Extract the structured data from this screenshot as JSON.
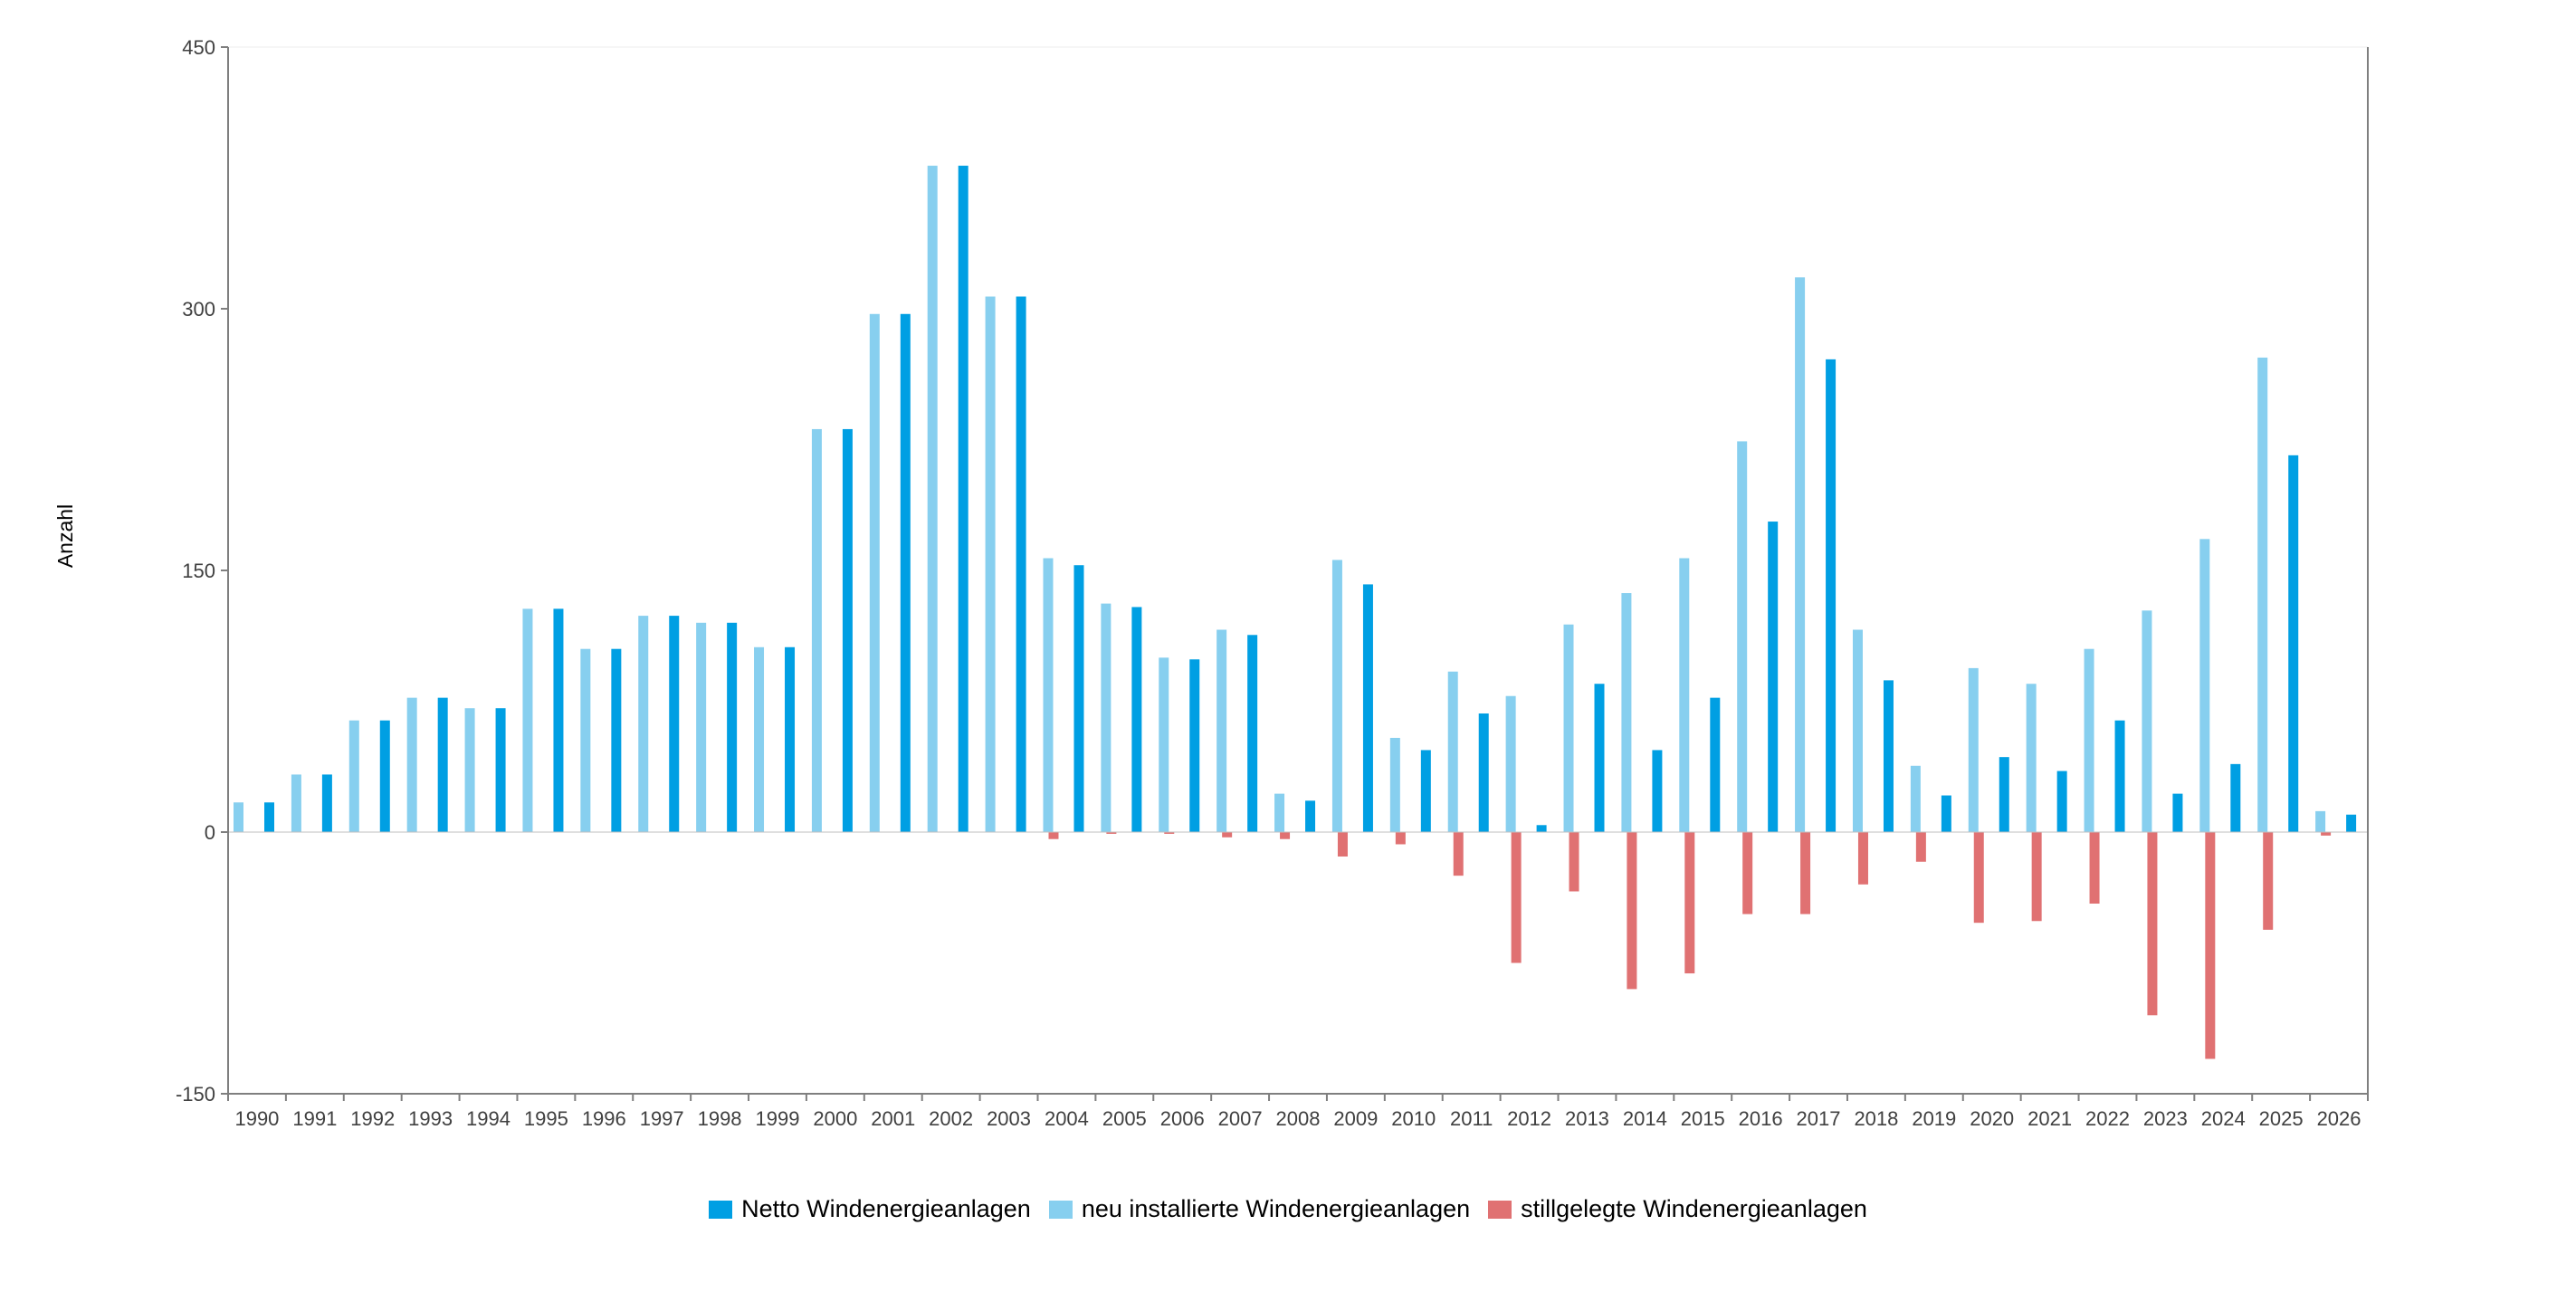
{
  "colors": {
    "netto": "#009fe3",
    "neu": "#87cfef",
    "still": "#e07172",
    "axis": "#7f7f7f",
    "grid": "#ececec"
  },
  "chart_data": {
    "type": "bar",
    "ylabel": "Anzahl",
    "ylim": [
      -150,
      450
    ],
    "yticks": [
      "-150",
      "0",
      "150",
      "300",
      "450"
    ],
    "categories": [
      "1990",
      "1991",
      "1992",
      "1993",
      "1994",
      "1995",
      "1996",
      "1997",
      "1998",
      "1999",
      "2000",
      "2001",
      "2002",
      "2003",
      "2004",
      "2005",
      "2006",
      "2007",
      "2008",
      "2009",
      "2010",
      "2011",
      "2012",
      "2013",
      "2014",
      "2015",
      "2016",
      "2017",
      "2018",
      "2019",
      "2020",
      "2021",
      "2022",
      "2023",
      "2024",
      "2025",
      "2026"
    ],
    "series": [
      {
        "name": "neu installierte Windenergieanlagen",
        "color_key": "neu",
        "values": [
          17,
          33,
          64,
          77,
          71,
          128,
          105,
          124,
          120,
          106,
          231,
          297,
          382,
          307,
          157,
          131,
          100,
          116,
          22,
          156,
          54,
          92,
          78,
          119,
          137,
          157,
          224,
          318,
          116,
          38,
          94,
          85,
          105,
          127,
          168,
          272,
          12
        ]
      },
      {
        "name": "stillgelegte Windenergieanlagen",
        "color_key": "still",
        "values": [
          0,
          0,
          0,
          0,
          0,
          0,
          0,
          0,
          0,
          0,
          0,
          0,
          0,
          0,
          -4,
          -1,
          -1,
          -3,
          -4,
          -14,
          -7,
          -25,
          -75,
          -34,
          -90,
          -81,
          -47,
          -47,
          -30,
          -17,
          -52,
          -51,
          -41,
          -105,
          -130,
          -56,
          -2
        ]
      },
      {
        "name": "Netto Windenergieanlagen",
        "color_key": "netto",
        "values": [
          17,
          33,
          64,
          77,
          71,
          128,
          105,
          124,
          120,
          106,
          231,
          297,
          382,
          307,
          153,
          129,
          99,
          113,
          18,
          142,
          47,
          68,
          4,
          85,
          47,
          77,
          178,
          271,
          87,
          21,
          43,
          35,
          64,
          22,
          39,
          216,
          10
        ]
      }
    ]
  },
  "legend": [
    {
      "label": "Netto Windenergieanlagen",
      "color_key": "netto"
    },
    {
      "label": "neu installierte Windenergieanlagen",
      "color_key": "neu"
    },
    {
      "label": "stillgelegte Windenergieanlagen",
      "color_key": "still"
    }
  ]
}
